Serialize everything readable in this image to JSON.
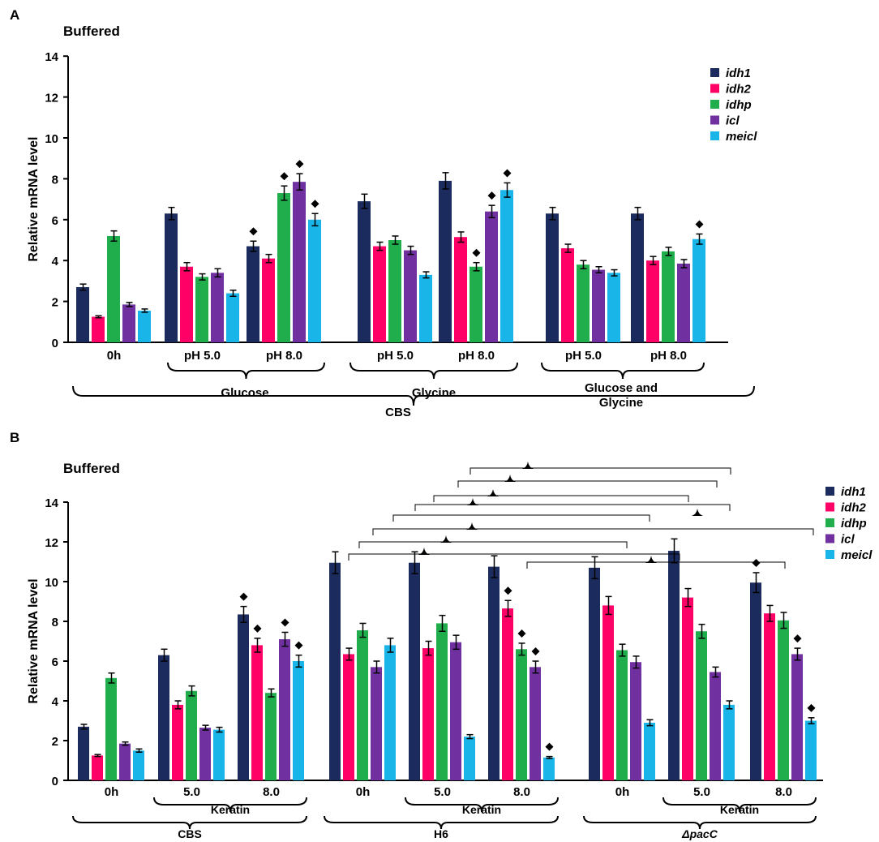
{
  "chart_data": [
    {
      "panel": "A",
      "type": "bar",
      "title": "Buffered",
      "ylabel": "Relative mRNA level",
      "ylim": [
        0,
        14
      ],
      "yticks": [
        0,
        2,
        4,
        6,
        8,
        10,
        12,
        14
      ],
      "legend_position": "top-right",
      "series_names": [
        "idh1",
        "idh2",
        "idhp",
        "icl",
        "meicl"
      ],
      "series_colors": [
        "#1b2b5e",
        "#ff0066",
        "#1fae4b",
        "#7030a0",
        "#19b4e8"
      ],
      "groups": [
        {
          "label": "0h",
          "values": [
            2.7,
            1.25,
            5.2,
            1.85,
            1.55
          ],
          "errors": [
            0.15,
            0.05,
            0.25,
            0.1,
            0.08
          ],
          "marks": [
            false,
            false,
            false,
            false,
            false
          ]
        },
        {
          "label": "pH 5.0",
          "values": [
            6.3,
            3.7,
            3.2,
            3.4,
            2.4
          ],
          "errors": [
            0.3,
            0.2,
            0.15,
            0.2,
            0.15
          ],
          "marks": [
            false,
            false,
            false,
            false,
            false
          ]
        },
        {
          "label": "pH 8.0",
          "values": [
            4.7,
            4.1,
            7.3,
            7.85,
            6.0
          ],
          "errors": [
            0.25,
            0.2,
            0.35,
            0.4,
            0.3
          ],
          "marks": [
            true,
            false,
            true,
            true,
            true
          ]
        },
        {
          "label": "pH 5.0",
          "values": [
            6.9,
            4.7,
            5.0,
            4.5,
            3.3
          ],
          "errors": [
            0.35,
            0.2,
            0.2,
            0.2,
            0.15
          ],
          "marks": [
            false,
            false,
            false,
            false,
            false
          ]
        },
        {
          "label": "pH 8.0",
          "values": [
            7.9,
            5.15,
            3.7,
            6.4,
            7.45
          ],
          "errors": [
            0.4,
            0.25,
            0.2,
            0.3,
            0.35
          ],
          "marks": [
            false,
            false,
            true,
            true,
            true
          ]
        },
        {
          "label": "pH 5.0",
          "values": [
            6.3,
            4.6,
            3.8,
            3.55,
            3.4
          ],
          "errors": [
            0.3,
            0.2,
            0.2,
            0.15,
            0.15
          ],
          "marks": [
            false,
            false,
            false,
            false,
            false
          ]
        },
        {
          "label": "pH 8.0",
          "values": [
            6.3,
            4.0,
            4.45,
            3.85,
            5.05
          ],
          "errors": [
            0.3,
            0.2,
            0.2,
            0.2,
            0.25
          ],
          "marks": [
            false,
            false,
            false,
            false,
            true
          ]
        }
      ],
      "brace_labels": [
        "Glucose",
        "Glycine",
        "Glucose and",
        "Glycine",
        "CBS"
      ]
    },
    {
      "panel": "B",
      "type": "bar",
      "title": "Buffered",
      "ylabel": "Relative mRNA level",
      "ylim": [
        0,
        14
      ],
      "yticks": [
        0,
        2,
        4,
        6,
        8,
        10,
        12,
        14
      ],
      "legend_position": "top-right",
      "series_names": [
        "idh1",
        "idh2",
        "idhp",
        "icl",
        "meicl"
      ],
      "series_colors": [
        "#1b2b5e",
        "#ff0066",
        "#1fae4b",
        "#7030a0",
        "#19b4e8"
      ],
      "groups": [
        {
          "label": "0h",
          "values": [
            2.7,
            1.25,
            5.15,
            1.85,
            1.5
          ],
          "errors": [
            0.12,
            0.05,
            0.25,
            0.08,
            0.08
          ],
          "marks": [
            false,
            false,
            false,
            false,
            false
          ]
        },
        {
          "label": "5.0",
          "values": [
            6.3,
            3.8,
            4.5,
            2.65,
            2.55
          ],
          "errors": [
            0.3,
            0.2,
            0.25,
            0.12,
            0.12
          ],
          "marks": [
            false,
            false,
            false,
            false,
            false
          ]
        },
        {
          "label": "8.0",
          "values": [
            8.35,
            6.8,
            4.4,
            7.1,
            6.0
          ],
          "errors": [
            0.4,
            0.35,
            0.2,
            0.35,
            0.3
          ],
          "marks": [
            true,
            true,
            false,
            true,
            true
          ]
        },
        {
          "label": "0h",
          "values": [
            10.95,
            6.35,
            7.55,
            5.7,
            6.8
          ],
          "errors": [
            0.55,
            0.3,
            0.35,
            0.3,
            0.35
          ],
          "marks": [
            false,
            false,
            false,
            false,
            false
          ]
        },
        {
          "label": "5.0",
          "values": [
            10.95,
            6.65,
            7.9,
            6.95,
            2.2
          ],
          "errors": [
            0.55,
            0.35,
            0.4,
            0.35,
            0.1
          ],
          "marks": [
            false,
            false,
            false,
            false,
            false
          ]
        },
        {
          "label": "8.0",
          "values": [
            10.75,
            8.65,
            6.6,
            5.7,
            1.15
          ],
          "errors": [
            0.55,
            0.4,
            0.3,
            0.3,
            0.05
          ],
          "marks": [
            false,
            true,
            true,
            true,
            true
          ]
        },
        {
          "label": "0h",
          "values": [
            10.7,
            8.8,
            6.55,
            5.95,
            2.9
          ],
          "errors": [
            0.55,
            0.45,
            0.3,
            0.3,
            0.15
          ],
          "marks": [
            false,
            false,
            false,
            false,
            false
          ]
        },
        {
          "label": "5.0",
          "values": [
            11.55,
            9.2,
            7.5,
            5.45,
            3.8
          ],
          "errors": [
            0.6,
            0.45,
            0.35,
            0.25,
            0.2
          ],
          "marks": [
            false,
            false,
            false,
            false,
            false
          ]
        },
        {
          "label": "8.0",
          "values": [
            9.95,
            8.4,
            8.05,
            6.35,
            3.0
          ],
          "errors": [
            0.5,
            0.4,
            0.4,
            0.3,
            0.15
          ],
          "marks": [
            true,
            false,
            false,
            true,
            true
          ]
        }
      ],
      "brace_labels": [
        "Keratin",
        "Keratin",
        "Keratin",
        "CBS",
        "H6",
        "ΔpacC"
      ]
    }
  ],
  "panel_letters": [
    "A",
    "B"
  ]
}
